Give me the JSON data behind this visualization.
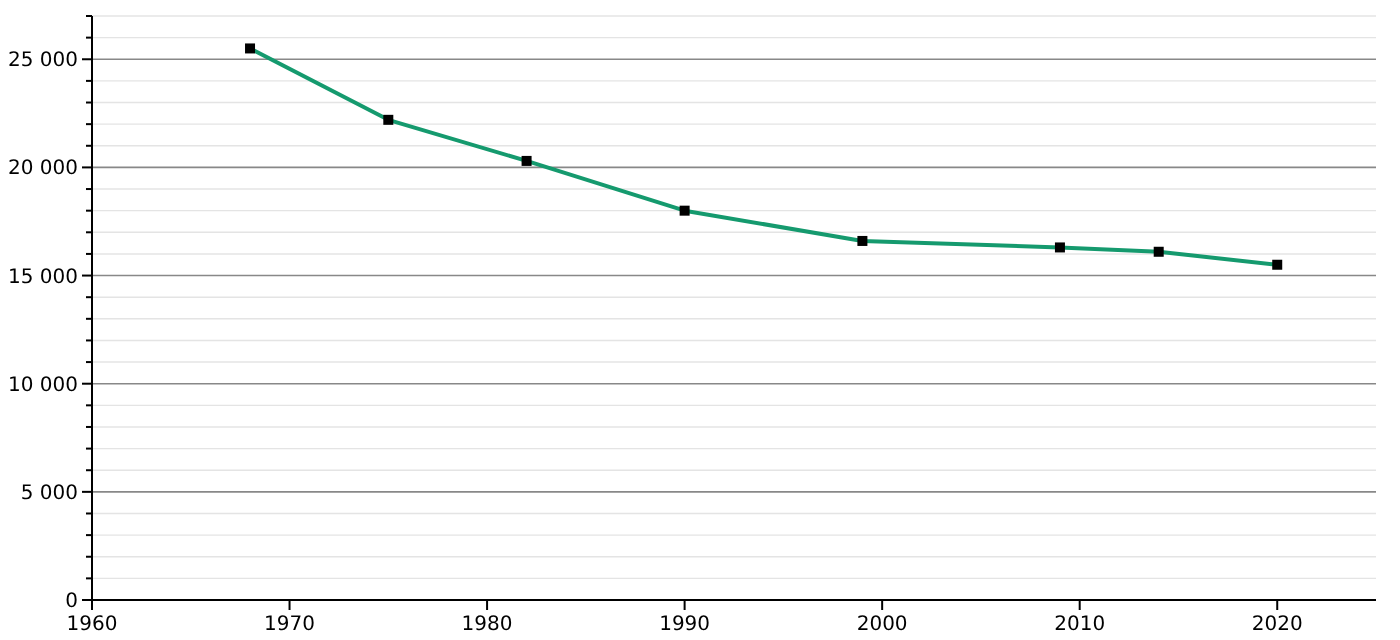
{
  "chart_data": {
    "type": "line",
    "x": [
      1968,
      1975,
      1982,
      1990,
      1999,
      2009,
      2014,
      2020
    ],
    "series": [
      {
        "color": "#159a6e",
        "values": [
          25500,
          22200,
          20300,
          18000,
          16600,
          16300,
          16100,
          15500
        ]
      }
    ],
    "xlim": [
      1960,
      2025
    ],
    "xticks": [
      1960,
      1970,
      1980,
      1990,
      2000,
      2010,
      2020
    ],
    "ylim": [
      0,
      27000
    ],
    "yticks": [
      {
        "value": 0,
        "label": "0"
      },
      {
        "value": 1000,
        "label": null
      },
      {
        "value": 2000,
        "label": null
      },
      {
        "value": 3000,
        "label": null
      },
      {
        "value": 4000,
        "label": null
      },
      {
        "value": 5000,
        "label": "5 000"
      },
      {
        "value": 6000,
        "label": null
      },
      {
        "value": 7000,
        "label": null
      },
      {
        "value": 8000,
        "label": null
      },
      {
        "value": 9000,
        "label": null
      },
      {
        "value": 10000,
        "label": "10 000"
      },
      {
        "value": 11000,
        "label": null
      },
      {
        "value": 12000,
        "label": null
      },
      {
        "value": 13000,
        "label": null
      },
      {
        "value": 14000,
        "label": null
      },
      {
        "value": 15000,
        "label": "15 000"
      },
      {
        "value": 16000,
        "label": null
      },
      {
        "value": 17000,
        "label": null
      },
      {
        "value": 18000,
        "label": null
      },
      {
        "value": 19000,
        "label": null
      },
      {
        "value": 20000,
        "label": "20 000"
      },
      {
        "value": 21000,
        "label": null
      },
      {
        "value": 22000,
        "label": null
      },
      {
        "value": 23000,
        "label": null
      },
      {
        "value": 24000,
        "label": null
      },
      {
        "value": 25000,
        "label": "25 000"
      },
      {
        "value": 26000,
        "label": null
      },
      {
        "value": 27000,
        "label": null
      }
    ],
    "grid": "y",
    "marker": "square",
    "line_style": "solid"
  }
}
